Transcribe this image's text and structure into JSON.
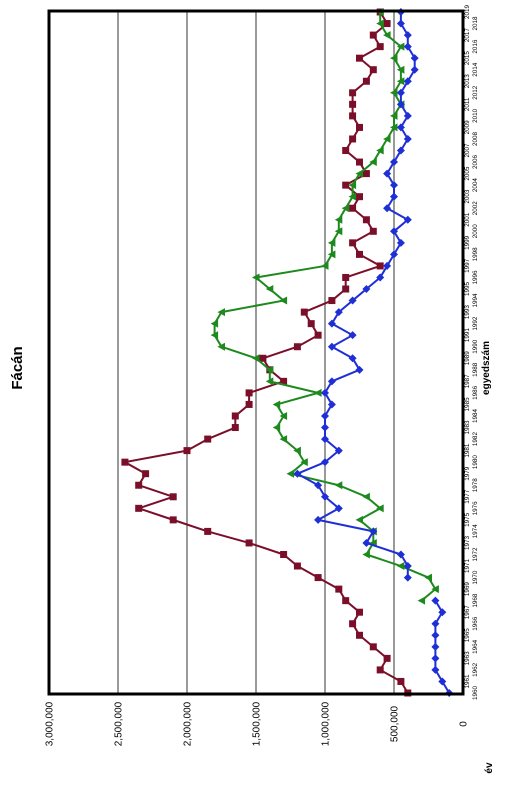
{
  "chart_data": {
    "type": "line",
    "orientation": "rotated-90-ccw",
    "title": "Fácán",
    "xlabel": "év",
    "ylabel": "egyedszám",
    "ylim": [
      0,
      3000000
    ],
    "yticks": [
      0,
      500000,
      1000000,
      1500000,
      2000000,
      2500000,
      3000000
    ],
    "ytick_labels": [
      "0",
      "500,000",
      "1,000,000",
      "1,500,000",
      "2,000,000",
      "2,500,000",
      "3,000,000"
    ],
    "grid": true,
    "colors": {
      "maroon": "#7b0f2a",
      "green": "#1e8a1e",
      "blue": "#1f2fd6"
    },
    "x": [
      1960,
      1961,
      1962,
      1963,
      1964,
      1965,
      1966,
      1967,
      1968,
      1969,
      1970,
      1971,
      1972,
      1973,
      1974,
      1975,
      1976,
      1977,
      1978,
      1979,
      1980,
      1981,
      1982,
      1983,
      1984,
      1985,
      1986,
      1987,
      1988,
      1989,
      1990,
      1991,
      1992,
      1993,
      1994,
      1995,
      1996,
      1997,
      1998,
      1999,
      2000,
      2001,
      2002,
      2003,
      2004,
      2005,
      2006,
      2007,
      2008,
      2009,
      2010,
      2011,
      2012,
      2013,
      2014,
      2015,
      2016,
      2017,
      2018,
      2019
    ],
    "series": [
      {
        "color_key": "maroon",
        "marker": "square",
        "values": [
          400000,
          450000,
          600000,
          550000,
          650000,
          750000,
          800000,
          750000,
          850000,
          900000,
          1050000,
          1200000,
          1300000,
          1550000,
          1850000,
          2100000,
          2350000,
          2100000,
          2350000,
          2300000,
          2450000,
          2000000,
          1850000,
          1650000,
          1650000,
          1550000,
          1550000,
          1300000,
          1400000,
          1450000,
          1200000,
          1050000,
          1100000,
          1150000,
          950000,
          850000,
          850000,
          600000,
          750000,
          800000,
          650000,
          700000,
          800000,
          750000,
          850000,
          700000,
          750000,
          850000,
          800000,
          750000,
          800000,
          800000,
          800000,
          700000,
          650000,
          750000,
          600000,
          650000,
          550000,
          600000
        ]
      },
      {
        "color_key": "green",
        "marker": "triangle",
        "values": [
          null,
          null,
          null,
          null,
          null,
          null,
          null,
          null,
          300000,
          200000,
          250000,
          450000,
          700000,
          650000,
          650000,
          750000,
          600000,
          700000,
          900000,
          1250000,
          1150000,
          1200000,
          1300000,
          1350000,
          1300000,
          1350000,
          1050000,
          1400000,
          1400000,
          1500000,
          1750000,
          1800000,
          1800000,
          1750000,
          1300000,
          1400000,
          1500000,
          1000000,
          950000,
          950000,
          900000,
          900000,
          850000,
          800000,
          800000,
          750000,
          650000,
          600000,
          550000,
          500000,
          500000,
          450000,
          500000,
          450000,
          450000,
          500000,
          450000,
          550000,
          600000,
          600000
        ]
      },
      {
        "color_key": "blue",
        "marker": "diamond",
        "values": [
          100000,
          150000,
          200000,
          200000,
          200000,
          200000,
          200000,
          150000,
          200000,
          null,
          400000,
          400000,
          450000,
          700000,
          650000,
          1050000,
          900000,
          1000000,
          1050000,
          1200000,
          1000000,
          900000,
          1000000,
          1000000,
          1000000,
          950000,
          1000000,
          950000,
          750000,
          800000,
          950000,
          800000,
          950000,
          900000,
          800000,
          700000,
          600000,
          550000,
          500000,
          450000,
          500000,
          400000,
          550000,
          500000,
          500000,
          550000,
          500000,
          450000,
          400000,
          450000,
          400000,
          450000,
          450000,
          400000,
          350000,
          350000,
          400000,
          400000,
          450000,
          450000
        ]
      }
    ]
  }
}
